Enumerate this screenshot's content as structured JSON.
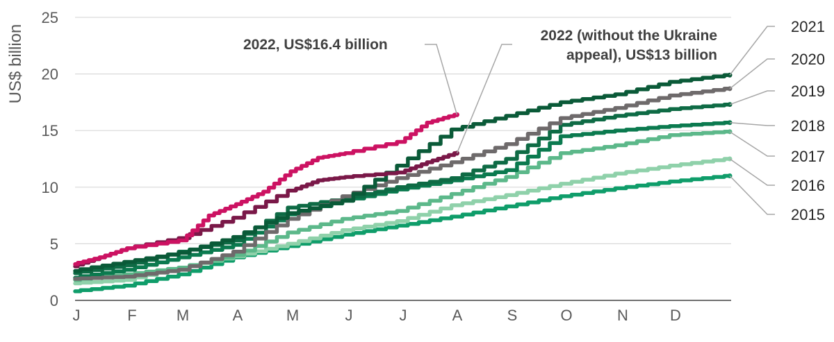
{
  "chart_data": {
    "type": "line",
    "title": "",
    "ylabel": "US$ billion",
    "xlabel": "",
    "ylim": [
      0,
      25
    ],
    "yticks": [
      0,
      5,
      10,
      15,
      20,
      25
    ],
    "xlim": [
      0,
      12
    ],
    "xticks": [
      "J",
      "F",
      "M",
      "A",
      "M",
      "J",
      "J",
      "A",
      "S",
      "O",
      "N",
      "D"
    ],
    "grid": "horizontal",
    "series": [
      {
        "name": "2015",
        "color": "#0f9d6a",
        "x": [
          0,
          1,
          2,
          3,
          4,
          5,
          6,
          7,
          8,
          9,
          10,
          11,
          12
        ],
        "y": [
          0.8,
          1.3,
          2.3,
          3.8,
          4.8,
          5.8,
          6.6,
          7.4,
          8.3,
          9.2,
          9.9,
          10.5,
          11.0
        ]
      },
      {
        "name": "2016",
        "color": "#8fd1aa",
        "x": [
          0,
          1,
          2,
          3,
          4,
          5,
          6,
          7,
          8,
          9,
          10,
          11,
          12
        ],
        "y": [
          1.5,
          1.8,
          2.9,
          3.9,
          5.0,
          6.2,
          7.0,
          8.4,
          9.3,
          10.3,
          11.2,
          11.9,
          12.5
        ]
      },
      {
        "name": "2017",
        "color": "#5cb88a",
        "x": [
          0,
          1,
          2,
          3,
          4,
          5,
          6,
          7,
          8,
          9,
          10,
          11,
          12
        ],
        "y": [
          1.8,
          2.3,
          2.9,
          4.0,
          6.0,
          7.2,
          7.9,
          9.4,
          10.9,
          13.0,
          13.7,
          14.6,
          14.9
        ]
      },
      {
        "name": "2018",
        "color": "#0b7a4f",
        "x": [
          0,
          1,
          2,
          3,
          4,
          5,
          6,
          7,
          8,
          9,
          10,
          11,
          12
        ],
        "y": [
          2.0,
          2.7,
          3.8,
          4.9,
          7.6,
          8.8,
          9.8,
          10.6,
          11.5,
          14.5,
          15.0,
          15.4,
          15.7
        ]
      },
      {
        "name": "2019",
        "color": "#0e6b45",
        "x": [
          0,
          1,
          2,
          3,
          4,
          5,
          6,
          7,
          8,
          9,
          10,
          11,
          12
        ],
        "y": [
          2.4,
          3.1,
          4.3,
          5.3,
          8.2,
          9.0,
          10.0,
          10.8,
          12.5,
          15.5,
          16.3,
          16.9,
          17.3
        ]
      },
      {
        "name": "2020",
        "color": "#6e6a6b",
        "x": [
          0,
          1,
          2,
          3,
          4,
          5,
          6,
          7,
          8,
          9,
          10,
          11,
          12
        ],
        "y": [
          1.9,
          2.1,
          2.7,
          4.3,
          7.2,
          9.2,
          10.8,
          12.2,
          13.8,
          16.1,
          17.0,
          18.1,
          18.7
        ]
      },
      {
        "name": "2021",
        "color": "#0a5a38",
        "x": [
          0,
          1,
          2,
          3,
          4,
          5,
          6,
          7,
          8,
          9,
          10,
          11,
          12
        ],
        "y": [
          2.6,
          3.4,
          4.2,
          5.6,
          7.7,
          8.8,
          11.9,
          15.1,
          16.3,
          17.5,
          18.2,
          19.3,
          19.9
        ]
      },
      {
        "name": "2022 (without the Ukraine appeal), US$13 billion",
        "color": "#7a1848",
        "x": [
          0,
          0.5,
          1,
          2,
          3,
          4,
          4.5,
          5,
          6,
          6.5,
          7
        ],
        "y": [
          3.0,
          3.8,
          4.6,
          5.5,
          7.3,
          9.7,
          10.6,
          10.9,
          11.3,
          12.2,
          13.0
        ]
      },
      {
        "name": "2022, US$16.4 billion",
        "color": "#cc1262",
        "x": [
          0,
          0.5,
          1,
          2,
          2.5,
          3,
          3.5,
          4,
          4.5,
          5,
          6,
          6.5,
          7
        ],
        "y": [
          3.2,
          3.8,
          4.6,
          5.3,
          7.5,
          8.5,
          9.6,
          11.4,
          12.6,
          13.0,
          14.0,
          15.7,
          16.4
        ]
      }
    ],
    "end_labels": [
      "2021",
      "2020",
      "2019",
      "2018",
      "2017",
      "2016",
      "2015"
    ],
    "annotations": [
      "2022, US$16.4 billion",
      "2022 (without the Ukraine",
      "appeal), US$13 billion"
    ]
  }
}
